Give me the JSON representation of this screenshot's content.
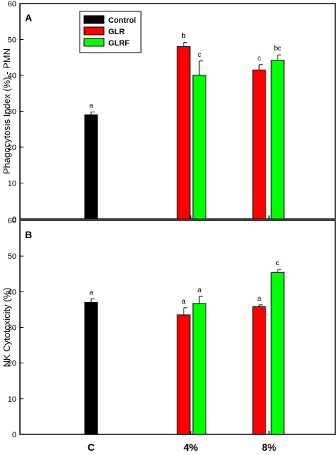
{
  "chart_data": {
    "type": "bar",
    "categories": [
      "C",
      "4%",
      "8%"
    ],
    "series_meta": [
      {
        "name": "Control",
        "color": "#000000"
      },
      {
        "name": "GLR",
        "color": "#ff0000"
      },
      {
        "name": "GLRF",
        "color": "#00ff00"
      }
    ],
    "panels": [
      {
        "letter": "A",
        "ylabel": "Phagocytosis Index (%) - PMN",
        "ylim": [
          0,
          60
        ],
        "yticks": [
          "0",
          "10",
          "20",
          "30",
          "40",
          "50",
          "60"
        ],
        "legend": true,
        "legend_position": "top-left",
        "bars": [
          {
            "series": "Control",
            "category": "C",
            "value": 29.0,
            "error": 0.8,
            "sig": "a"
          },
          {
            "series": "GLR",
            "category": "4%",
            "value": 48.0,
            "error": 1.2,
            "sig": "b"
          },
          {
            "series": "GLRF",
            "category": "4%",
            "value": 40.0,
            "error": 4.0,
            "sig": "c"
          },
          {
            "series": "GLR",
            "category": "8%",
            "value": 41.5,
            "error": 1.5,
            "sig": "c"
          },
          {
            "series": "GLRF",
            "category": "8%",
            "value": 44.2,
            "error": 1.5,
            "sig": "bc"
          }
        ]
      },
      {
        "letter": "B",
        "ylabel": "NK Cytotoxicity (%)",
        "ylim": [
          0,
          60
        ],
        "yticks": [
          "0",
          "10",
          "20",
          "30",
          "40",
          "50",
          "60"
        ],
        "legend": false,
        "bars": [
          {
            "series": "Control",
            "category": "C",
            "value": 37.0,
            "error": 1.0,
            "sig": "a"
          },
          {
            "series": "GLR",
            "category": "4%",
            "value": 33.5,
            "error": 2.0,
            "sig": "a"
          },
          {
            "series": "GLRF",
            "category": "4%",
            "value": 36.7,
            "error": 2.0,
            "sig": "a"
          },
          {
            "series": "GLR",
            "category": "8%",
            "value": 35.8,
            "error": 0.5,
            "sig": "a"
          },
          {
            "series": "GLRF",
            "category": "8%",
            "value": 45.4,
            "error": 0.8,
            "sig": "c"
          }
        ]
      }
    ],
    "grid": false
  }
}
